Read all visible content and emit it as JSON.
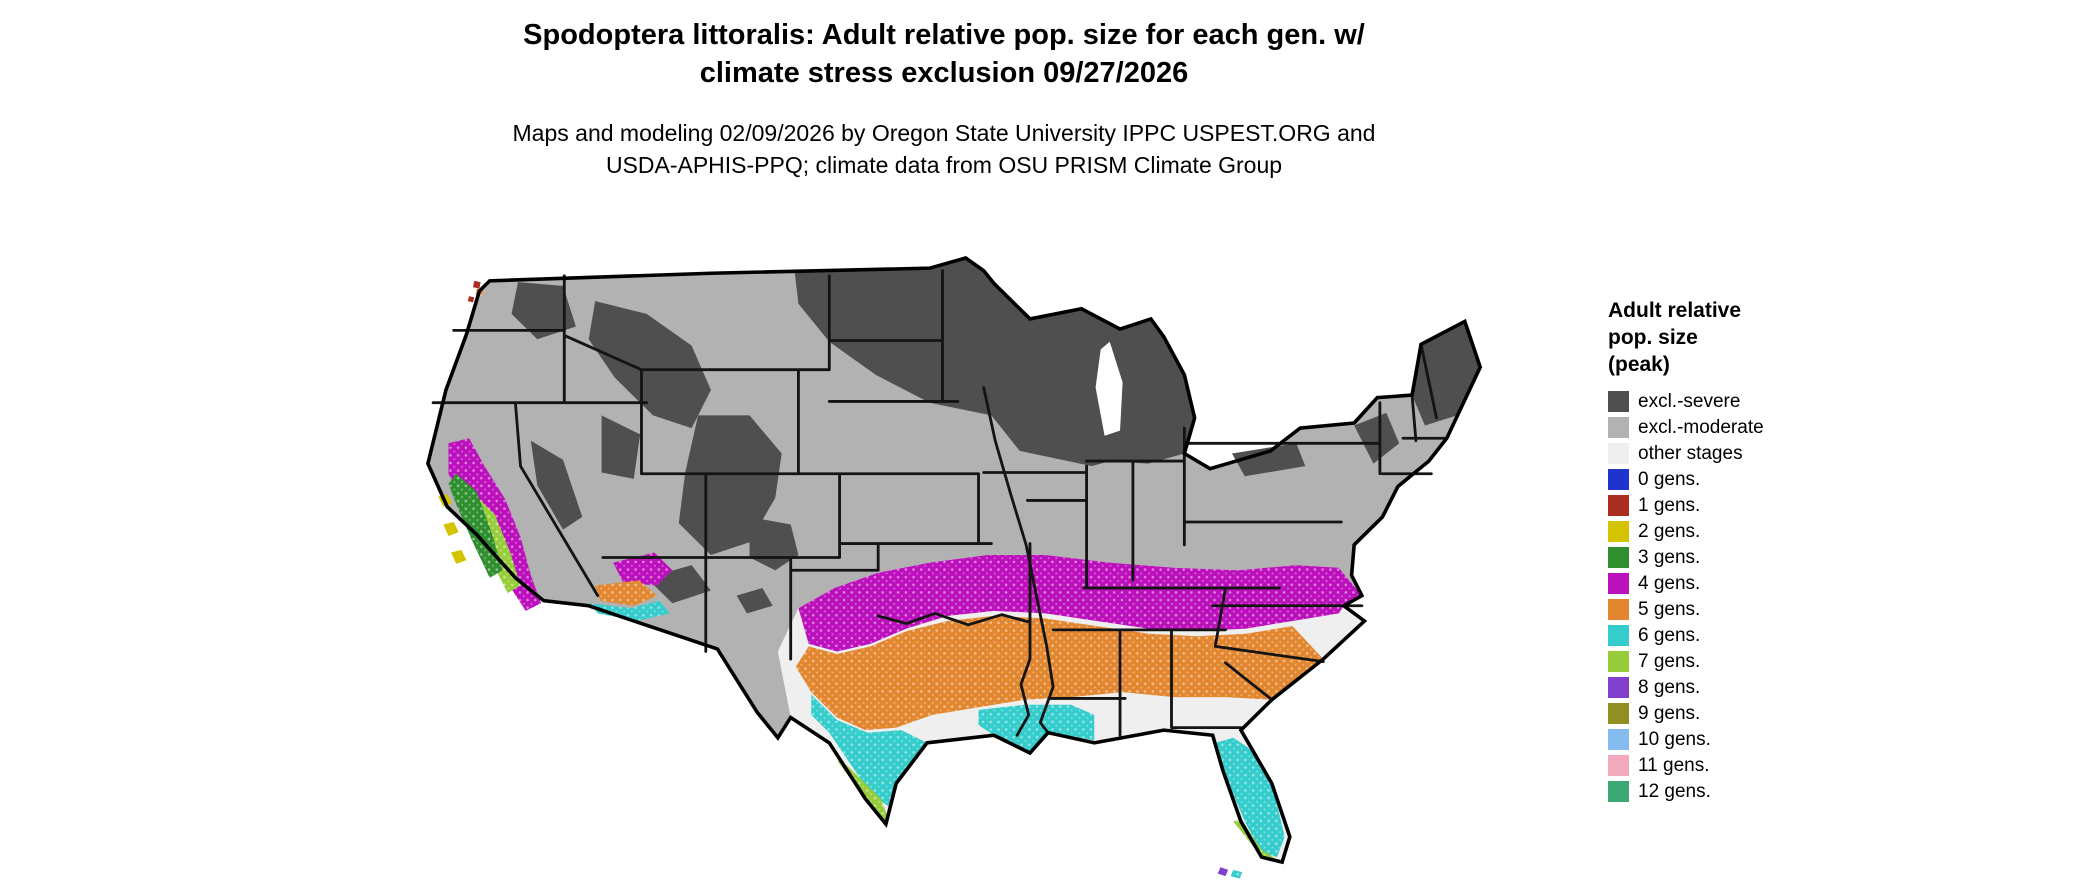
{
  "title": {
    "line1": "Spodoptera littoralis: Adult relative pop. size for each gen. w/",
    "line2": "climate stress exclusion 09/27/2026"
  },
  "subtitle": {
    "line1": "Maps and modeling 02/09/2026 by Oregon State University IPPC USPEST.ORG and",
    "line2": "USDA-APHIS-PPQ; climate data from OSU PRISM Climate Group"
  },
  "legend": {
    "title_lines": [
      "Adult relative",
      "pop. size",
      "(peak)"
    ],
    "items": [
      {
        "label": "excl.-severe",
        "color": "#4f4f4f"
      },
      {
        "label": "excl.-moderate",
        "color": "#b2b2b2"
      },
      {
        "label": "other stages",
        "color": "#efefef"
      },
      {
        "label": "0 gens.",
        "color": "#2033cc"
      },
      {
        "label": "1 gens.",
        "color": "#aa2e1f"
      },
      {
        "label": "2 gens.",
        "color": "#d4c400"
      },
      {
        "label": "3 gens.",
        "color": "#2f8f2f"
      },
      {
        "label": "4 gens.",
        "color": "#bb10bb"
      },
      {
        "label": "5 gens.",
        "color": "#e2862f"
      },
      {
        "label": "6 gens.",
        "color": "#35cccc"
      },
      {
        "label": "7 gens.",
        "color": "#97cc3a"
      },
      {
        "label": "8 gens.",
        "color": "#8040cc"
      },
      {
        "label": "9 gens.",
        "color": "#8f8f22"
      },
      {
        "label": "10 gens.",
        "color": "#85bbee"
      },
      {
        "label": "11 gens.",
        "color": "#f2a9bc"
      },
      {
        "label": "12 gens.",
        "color": "#3ba873"
      }
    ]
  },
  "map": {
    "region": "Conterminous United States",
    "regions": [
      {
        "class": "excl.-severe",
        "areas": "northern plains, upper Great Lakes states, mountain West, northern New England"
      },
      {
        "class": "excl.-moderate",
        "areas": "most remaining interior, western and northern states"
      },
      {
        "class": "other stages",
        "areas": "background across the southern states"
      },
      {
        "class": "4 gens.",
        "areas": "California coast, central Arizona, band from Oklahoma/Texas across the Deep South to the Carolinas and coastal Virginia"
      },
      {
        "class": "5 gens.",
        "areas": "central Texas through the Gulf states and Georgia to the coastal Carolinas"
      },
      {
        "class": "6 gens.",
        "areas": "south Texas, Gulf coast, southern Arizona, central Florida"
      },
      {
        "class": "7 gens.",
        "areas": "southern tip of Texas, south Florida, California Central Valley"
      },
      {
        "class": "3 gens.",
        "areas": "inland California"
      },
      {
        "class": "2 gens.",
        "areas": "scattered spots on the central California coast"
      }
    ]
  }
}
